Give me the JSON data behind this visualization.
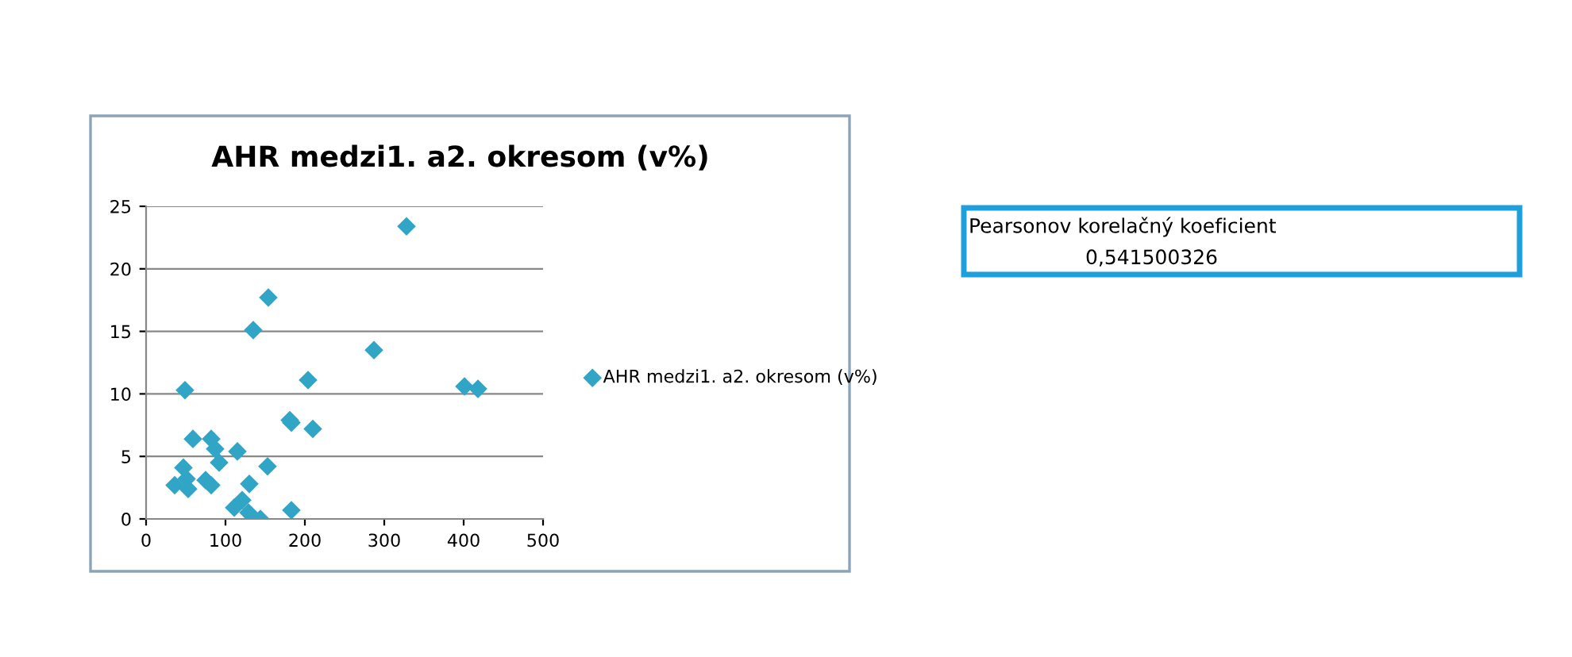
{
  "chart_data": {
    "type": "scatter",
    "title": "AHR medzi1. a2. okresom (v%)",
    "x": [
      328,
      154,
      135,
      287,
      204,
      49,
      401,
      418,
      181,
      183,
      210,
      59,
      82,
      87,
      115,
      92,
      153,
      47,
      51,
      75,
      82,
      36,
      53,
      130,
      121,
      111,
      129,
      144,
      183
    ],
    "series": [
      {
        "name": "AHR medzi1. a2. okresom (v%)",
        "color": "#31a5c6",
        "values": [
          23.4,
          17.7,
          15.1,
          13.5,
          11.1,
          10.3,
          10.6,
          10.4,
          7.9,
          7.7,
          7.2,
          6.4,
          6.4,
          5.6,
          5.4,
          4.5,
          4.2,
          4.1,
          3.2,
          3.1,
          2.7,
          2.7,
          2.4,
          2.8,
          1.5,
          0.9,
          0.5,
          0,
          0.7
        ]
      }
    ],
    "xlim": [
      0,
      500
    ],
    "xticks": [
      0,
      100,
      200,
      300,
      400,
      500
    ],
    "ylim": [
      0,
      25
    ],
    "yticks": [
      0,
      5,
      10,
      15,
      20,
      25
    ],
    "grid": "y",
    "legend": "right",
    "marker": "diamond",
    "annotations": [
      "Pearsonov korelačný koeficient",
      "0,541500326"
    ]
  }
}
